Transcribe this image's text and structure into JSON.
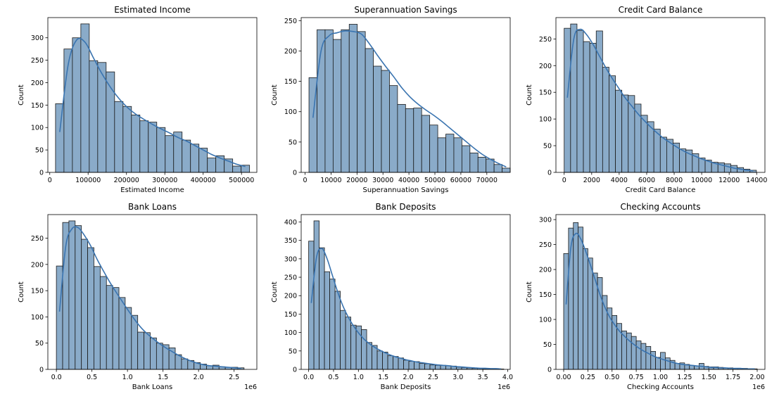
{
  "style": {
    "bar_fill": "#8aabc9",
    "bar_edge": "#1a1a1a",
    "kde_color": "#3a74b0",
    "axis_color": "#000000"
  },
  "chart_data": [
    {
      "type": "bar",
      "title": "Estimated Income",
      "xlabel": "Estimated Income",
      "ylabel": "Count",
      "xlim": [
        -5000,
        540000
      ],
      "ylim": [
        0,
        345
      ],
      "x_offset": "",
      "xticks": [
        0,
        100000,
        200000,
        300000,
        400000,
        500000
      ],
      "xtick_labels": [
        "0",
        "100000",
        "200000",
        "300000",
        "400000",
        "500000"
      ],
      "yticks": [
        0,
        50,
        100,
        150,
        200,
        250,
        300
      ],
      "bin_start": 15000,
      "bin_width": 22000,
      "values": [
        153,
        275,
        300,
        331,
        249,
        245,
        224,
        158,
        147,
        128,
        115,
        112,
        100,
        82,
        90,
        72,
        63,
        54,
        32,
        37,
        30,
        14,
        16
      ],
      "kde": [
        90,
        240,
        295,
        290,
        255,
        220,
        190,
        165,
        145,
        130,
        118,
        107,
        97,
        88,
        78,
        70,
        60,
        50,
        40,
        32,
        25,
        18,
        13
      ]
    },
    {
      "type": "bar",
      "title": "Superannuation Savings",
      "xlabel": "Superannuation Savings",
      "ylabel": "Count",
      "xlim": [
        -1500,
        79000
      ],
      "ylim": [
        0,
        255
      ],
      "x_offset": "",
      "xticks": [
        0,
        10000,
        20000,
        30000,
        40000,
        50000,
        60000,
        70000
      ],
      "xtick_labels": [
        "0",
        "10000",
        "20000",
        "30000",
        "40000",
        "50000",
        "60000",
        "70000"
      ],
      "yticks": [
        0,
        50,
        100,
        150,
        200,
        250
      ],
      "bin_start": 1500,
      "bin_width": 3100,
      "values": [
        156,
        235,
        235,
        219,
        235,
        244,
        232,
        204,
        175,
        168,
        143,
        112,
        105,
        106,
        94,
        78,
        57,
        63,
        57,
        44,
        32,
        25,
        22,
        13,
        7
      ],
      "kde": [
        90,
        200,
        225,
        230,
        233,
        232,
        228,
        212,
        193,
        175,
        158,
        140,
        125,
        113,
        103,
        94,
        84,
        73,
        62,
        51,
        40,
        30,
        22,
        15,
        9
      ]
    },
    {
      "type": "bar",
      "title": "Credit Card Balance",
      "xlabel": "Credit Card Balance",
      "ylabel": "Count",
      "xlim": [
        -600,
        14600
      ],
      "ylim": [
        0,
        290
      ],
      "x_offset": "",
      "xticks": [
        0,
        2000,
        4000,
        6000,
        8000,
        10000,
        12000,
        14000
      ],
      "xtick_labels": [
        "0",
        "2000",
        "4000",
        "6000",
        "8000",
        "10000",
        "12000",
        "14000"
      ],
      "yticks": [
        0,
        50,
        100,
        150,
        200,
        250
      ],
      "bin_start": 0,
      "bin_width": 466,
      "values": [
        270,
        278,
        266,
        245,
        242,
        265,
        197,
        181,
        154,
        145,
        144,
        128,
        107,
        95,
        81,
        66,
        62,
        55,
        44,
        42,
        35,
        27,
        23,
        19,
        18,
        16,
        13,
        9,
        6,
        4
      ],
      "kde": [
        140,
        250,
        268,
        258,
        240,
        218,
        196,
        176,
        158,
        140,
        125,
        110,
        97,
        85,
        74,
        64,
        56,
        48,
        41,
        35,
        30,
        25,
        21,
        17,
        14,
        11,
        8,
        6,
        4,
        3
      ]
    },
    {
      "type": "bar",
      "title": "Bank Loans",
      "xlabel": "Bank Loans",
      "ylabel": "Count",
      "xlim": [
        -120000,
        2820000
      ],
      "ylim": [
        0,
        295
      ],
      "x_offset": "1e6",
      "xticks": [
        0,
        500000,
        1000000,
        1500000,
        2000000,
        2500000
      ],
      "xtick_labels": [
        "0.0",
        "0.5",
        "1.0",
        "1.5",
        "2.0",
        "2.5"
      ],
      "yticks": [
        0,
        50,
        100,
        150,
        200,
        250
      ],
      "bin_start": 0,
      "bin_width": 88000,
      "values": [
        197,
        280,
        283,
        274,
        248,
        232,
        196,
        177,
        160,
        156,
        137,
        118,
        103,
        71,
        70,
        60,
        50,
        47,
        41,
        28,
        20,
        17,
        13,
        10,
        7,
        8,
        5,
        4,
        4,
        3
      ],
      "kde": [
        110,
        235,
        268,
        270,
        255,
        235,
        210,
        188,
        167,
        148,
        130,
        112,
        95,
        80,
        68,
        58,
        49,
        41,
        34,
        27,
        21,
        16,
        12,
        9,
        7,
        6,
        5,
        4,
        3,
        2
      ]
    },
    {
      "type": "bar",
      "title": "Bank Deposits",
      "xlabel": "Bank Deposits",
      "ylabel": "Count",
      "xlim": [
        -150000,
        4050000
      ],
      "ylim": [
        0,
        420
      ],
      "x_offset": "1e6",
      "xticks": [
        0,
        500000,
        1000000,
        1500000,
        2000000,
        2500000,
        3000000,
        3500000,
        4000000
      ],
      "xtick_labels": [
        "0.0",
        "0.5",
        "1.0",
        "1.5",
        "2.0",
        "2.5",
        "3.0",
        "3.5",
        "4.0"
      ],
      "yticks": [
        0,
        50,
        100,
        150,
        200,
        250,
        300,
        350,
        400
      ],
      "bin_start": 0,
      "bin_width": 106000,
      "values": [
        348,
        403,
        330,
        265,
        245,
        212,
        160,
        142,
        120,
        118,
        108,
        73,
        65,
        50,
        47,
        37,
        35,
        31,
        25,
        22,
        21,
        16,
        15,
        12,
        11,
        11,
        10,
        9,
        6,
        5,
        4,
        3,
        3,
        2,
        2,
        2,
        1
      ],
      "kde": [
        180,
        305,
        328,
        300,
        255,
        210,
        172,
        142,
        118,
        98,
        82,
        70,
        60,
        52,
        45,
        39,
        34,
        30,
        26,
        23,
        20,
        18,
        16,
        14,
        12,
        11,
        10,
        8,
        7,
        6,
        5,
        4,
        3,
        3,
        2,
        2,
        1
      ]
    },
    {
      "type": "bar",
      "title": "Checking Accounts",
      "xlabel": "Checking Accounts",
      "ylabel": "Count",
      "xlim": [
        -80000,
        2080000
      ],
      "ylim": [
        0,
        310
      ],
      "x_offset": "1e6",
      "xticks": [
        0,
        250000,
        500000,
        750000,
        1000000,
        1250000,
        1500000,
        1750000,
        2000000
      ],
      "xtick_labels": [
        "0.00",
        "0.25",
        "0.50",
        "0.75",
        "1.00",
        "1.25",
        "1.50",
        "1.75",
        "2.00"
      ],
      "yticks": [
        0,
        50,
        100,
        150,
        200,
        250,
        300
      ],
      "bin_start": 0,
      "bin_width": 50000,
      "values": [
        232,
        283,
        294,
        285,
        242,
        223,
        193,
        184,
        148,
        123,
        108,
        92,
        77,
        73,
        66,
        57,
        52,
        46,
        36,
        24,
        34,
        23,
        18,
        12,
        13,
        10,
        8,
        7,
        12,
        6,
        5,
        5,
        4,
        3,
        3,
        2,
        2,
        2,
        1,
        1
      ],
      "kde": [
        130,
        245,
        272,
        262,
        238,
        210,
        180,
        150,
        125,
        105,
        90,
        77,
        67,
        58,
        50,
        43,
        37,
        32,
        27,
        23,
        20,
        17,
        14,
        12,
        10,
        9,
        8,
        7,
        6,
        5,
        4,
        4,
        3,
        3,
        2,
        2,
        2,
        1,
        1,
        1
      ]
    }
  ]
}
